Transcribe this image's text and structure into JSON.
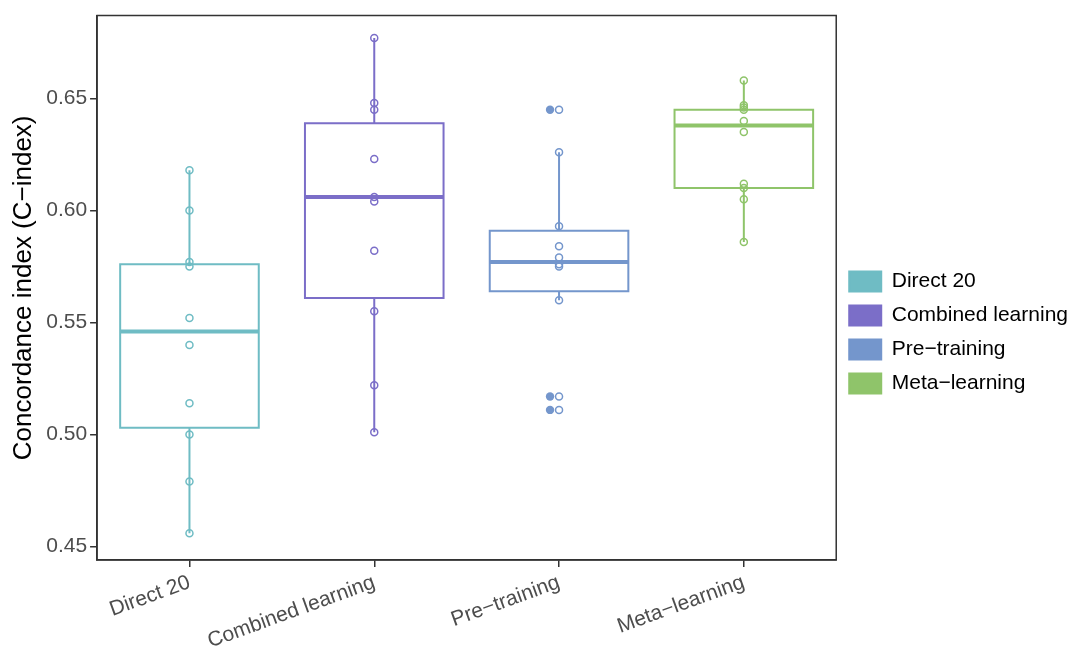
{
  "chart_data": {
    "type": "box",
    "ylabel": "Concordance index (C−index)",
    "categories": [
      "Direct 20",
      "Combined learning",
      "Pre−training",
      "Meta−learning"
    ],
    "ylim": [
      0.444,
      0.687
    ],
    "yticks": [
      0.45,
      {
        "value": 0.5,
        "label": "0.50"
      },
      0.55,
      {
        "value": 0.6,
        "label": "0.60"
      },
      0.65
    ],
    "grid": false,
    "legend": "right",
    "series": [
      {
        "name": "Direct 20",
        "color": "#6fbcc4",
        "boxes": [
          {
            "low": 0.456,
            "q1": 0.503,
            "median": 0.546,
            "q3": 0.576,
            "high": 0.618
          },
          null,
          null,
          null
        ]
      },
      {
        "name": "Combined learning",
        "color": "#7b6ec8",
        "boxes": [
          null,
          {
            "low": 0.501,
            "q1": 0.561,
            "median": 0.606,
            "q3": 0.639,
            "high": 0.677
          },
          null,
          null
        ]
      },
      {
        "name": "Pre−training",
        "color": "#7496cc",
        "boxes": [
          null,
          null,
          {
            "low": 0.56,
            "q1": 0.564,
            "median": 0.577,
            "q3": 0.591,
            "high": 0.626,
            "outliers": [
              0.645,
              0.517,
              0.511
            ]
          },
          null
        ]
      },
      {
        "name": "Meta−learning",
        "color": "#8fc46a",
        "boxes": [
          null,
          null,
          null,
          {
            "low": 0.586,
            "q1": 0.61,
            "median": 0.638,
            "q3": 0.645,
            "high": 0.658
          }
        ]
      },
      {
        "type": "scatter",
        "color": "#6fbcc4",
        "marker": "circle",
        "x": [
          "Direct 20",
          "Direct 20",
          "Direct 20",
          "Direct 20",
          "Direct 20",
          "Direct 20",
          "Direct 20",
          "Direct 20",
          "Direct 20",
          "Direct 20"
        ],
        "values": [
          0.618,
          0.6,
          0.577,
          0.575,
          0.552,
          0.54,
          0.514,
          0.5,
          0.479,
          0.456
        ]
      },
      {
        "type": "scatter",
        "color": "#7b6ec8",
        "marker": "circle",
        "x": [
          "Combined learning",
          "Combined learning",
          "Combined learning",
          "Combined learning",
          "Combined learning",
          "Combined learning",
          "Combined learning",
          "Combined learning",
          "Combined learning",
          "Combined learning"
        ],
        "values": [
          0.677,
          0.648,
          0.645,
          0.623,
          0.606,
          0.604,
          0.582,
          0.555,
          0.522,
          0.501
        ]
      },
      {
        "type": "scatter",
        "color": "#7496cc",
        "marker": "circle",
        "x": [
          "Pre−training",
          "Pre−training",
          "Pre−training",
          "Pre−training",
          "Pre−training",
          "Pre−training",
          "Pre−training",
          "Pre−training",
          "Pre−training",
          "Pre−training"
        ],
        "values": [
          0.645,
          0.626,
          0.593,
          0.584,
          0.579,
          0.576,
          0.575,
          0.56,
          0.517,
          0.511
        ]
      },
      {
        "type": "scatter",
        "color": "#8fc46a",
        "marker": "circle",
        "x": [
          "Meta−learning",
          "Meta−learning",
          "Meta−learning",
          "Meta−learning",
          "Meta−learning",
          "Meta−learning",
          "Meta−learning",
          "Meta−learning",
          "Meta−learning",
          "Meta−learning"
        ],
        "values": [
          0.658,
          0.647,
          0.646,
          0.645,
          0.64,
          0.635,
          0.612,
          0.61,
          0.605,
          0.586
        ]
      }
    ]
  }
}
